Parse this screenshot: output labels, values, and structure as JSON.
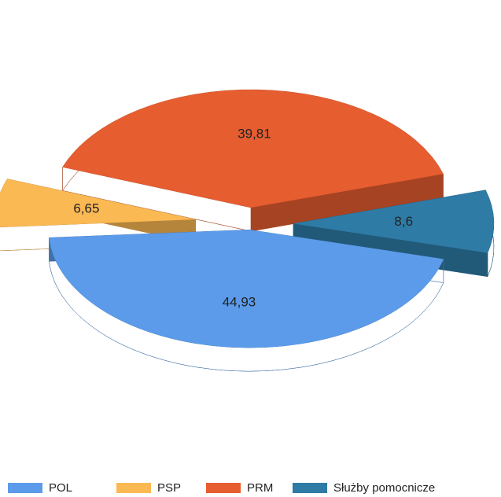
{
  "chart_data": {
    "type": "pie",
    "categories": [
      "POL",
      "PSP",
      "PRM",
      "Służby pomocnicze"
    ],
    "values": [
      44.93,
      6.65,
      39.81,
      8.6
    ],
    "value_labels": [
      "44,93",
      "6,65",
      "39,81",
      "8,6"
    ],
    "colors": [
      "#5b9bea",
      "#fbb954",
      "#e65d30",
      "#2e7ba6"
    ],
    "legend": "bottom"
  }
}
